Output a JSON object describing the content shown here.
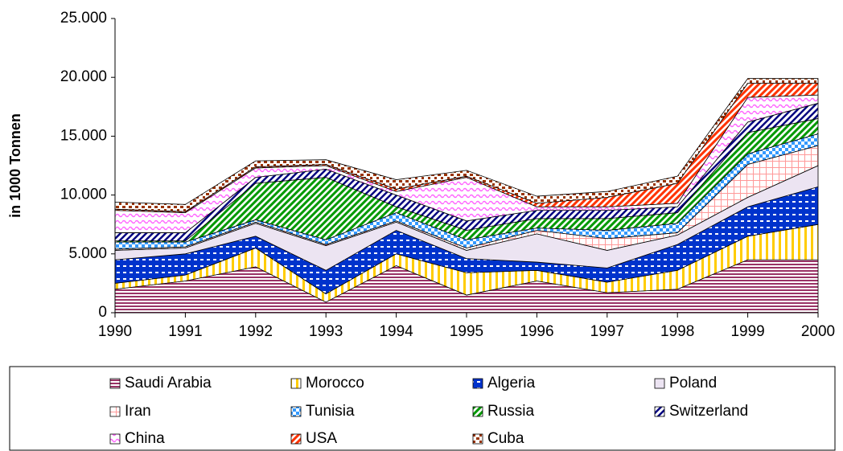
{
  "chart_data": {
    "type": "stacked_area",
    "y_label": "in 1000 Tonnen",
    "x": [
      1990,
      1991,
      1992,
      1993,
      1994,
      1995,
      1996,
      1997,
      1998,
      1999,
      2000
    ],
    "xlim": [
      1990,
      2000
    ],
    "xticks": [
      1990,
      1991,
      1992,
      1993,
      1994,
      1995,
      1996,
      1997,
      1998,
      1999,
      2000
    ],
    "ylim": [
      0,
      25000
    ],
    "yticks": [
      0,
      {
        "value": 5000,
        "label": "5.000"
      },
      {
        "value": 10000,
        "label": "10.000"
      },
      {
        "value": 15000,
        "label": "15.000"
      },
      {
        "value": 20000,
        "label": "20.000"
      },
      {
        "value": 25000,
        "label": "25.000"
      }
    ],
    "legend": "bottom",
    "series": [
      {
        "name": "Saudi Arabia",
        "color": "#993366",
        "values": [
          2000,
          2700,
          3900,
          900,
          4000,
          1500,
          2700,
          1700,
          2000,
          4500,
          4500
        ]
      },
      {
        "name": "Morocco",
        "color": "#ffcc00",
        "values": [
          500,
          500,
          1600,
          700,
          1000,
          1900,
          900,
          900,
          1600,
          2000,
          3000
        ]
      },
      {
        "name": "Algeria",
        "color": "#0033cc",
        "values": [
          2000,
          1800,
          1000,
          2000,
          2000,
          1200,
          700,
          1200,
          2200,
          2500,
          3200
        ]
      },
      {
        "name": "Poland",
        "color": "#ece4f2",
        "values": [
          800,
          500,
          1100,
          2100,
          700,
          700,
          2400,
          1500,
          800,
          800,
          1800
        ]
      },
      {
        "name": "Iran",
        "color": "#ff9999",
        "values": [
          100,
          100,
          100,
          100,
          100,
          200,
          300,
          1000,
          200,
          2800,
          1700
        ]
      },
      {
        "name": "Tunisia",
        "color": "#3399ff",
        "values": [
          600,
          400,
          200,
          400,
          700,
          700,
          200,
          700,
          800,
          900,
          1000
        ]
      },
      {
        "name": "Russia",
        "color": "#009900",
        "values": [
          100,
          100,
          3100,
          5300,
          500,
          800,
          800,
          1000,
          900,
          1800,
          1300
        ]
      },
      {
        "name": "Switzerland",
        "color": "#000080",
        "values": [
          700,
          700,
          500,
          700,
          1000,
          800,
          700,
          700,
          500,
          900,
          1300
        ]
      },
      {
        "name": "China",
        "color": "#ff66ff",
        "values": [
          1900,
          1700,
          800,
          300,
          300,
          3700,
          300,
          300,
          300,
          2100,
          700
        ]
      },
      {
        "name": "USA",
        "color": "#ff3300",
        "values": [
          100,
          100,
          100,
          100,
          200,
          100,
          300,
          800,
          1700,
          1200,
          1000
        ]
      },
      {
        "name": "Cuba",
        "color": "#993300",
        "values": [
          600,
          600,
          500,
          400,
          800,
          500,
          600,
          500,
          600,
          400,
          400
        ]
      }
    ]
  }
}
